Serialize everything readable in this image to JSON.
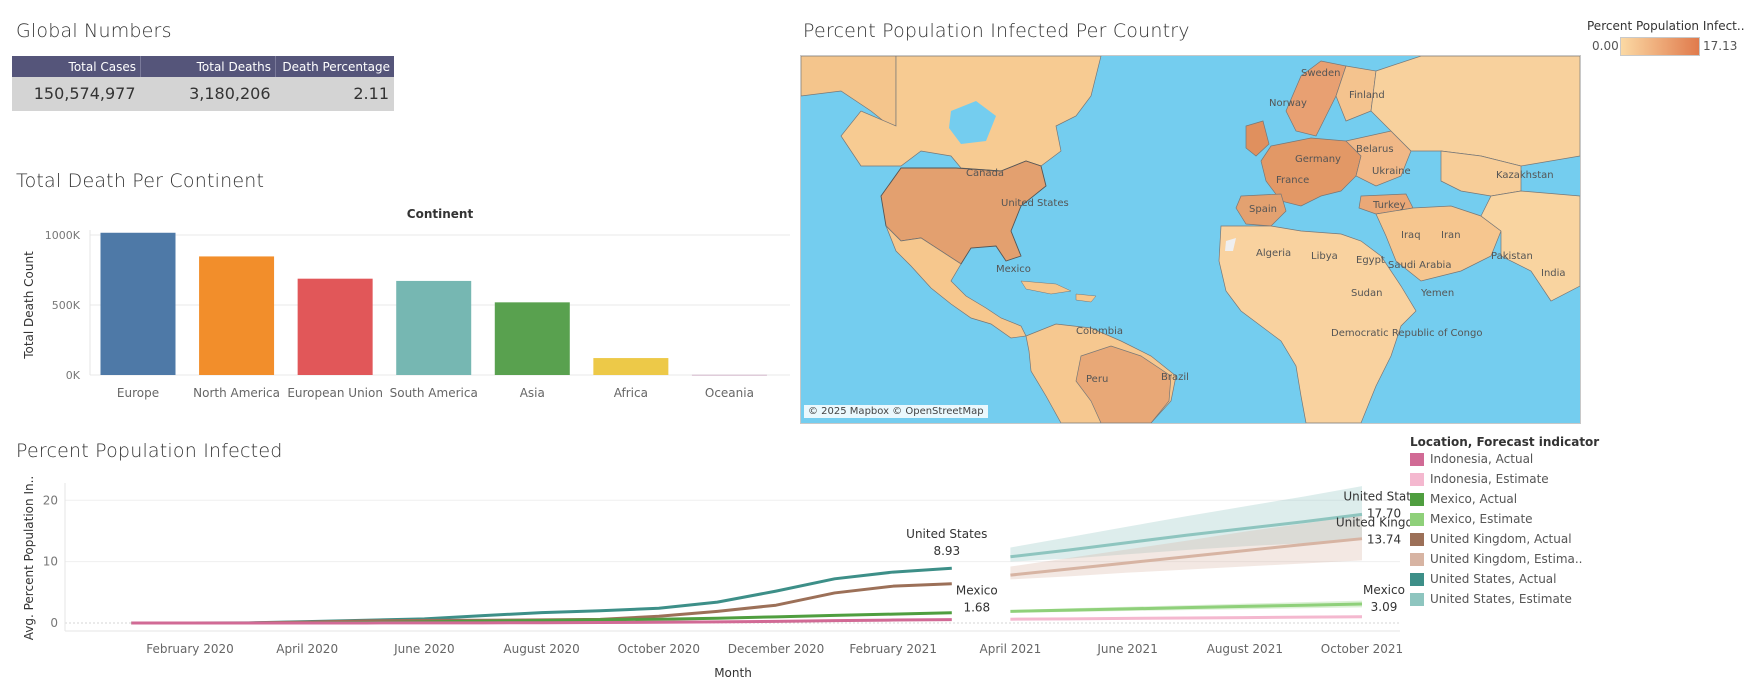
{
  "global_numbers": {
    "title": "Global Numbers",
    "headers": [
      "Total Cases",
      "Total Deaths",
      "Death Percentage"
    ],
    "values": [
      "150,574,977",
      "3,180,206",
      "2.11"
    ],
    "header_color": "#55557a"
  },
  "map": {
    "title": "Percent Population Infected Per Country",
    "legend_title": "Percent Population Infect..",
    "legend_min": "0.00",
    "legend_max": "17.13",
    "attribution": "© 2025 Mapbox © OpenStreetMap",
    "labels": [
      "Canada",
      "United States",
      "Mexico",
      "Colombia",
      "Peru",
      "Brazil",
      "Sweden",
      "Norway",
      "Finland",
      "Germany",
      "France",
      "Spain",
      "Ukraine",
      "Belarus",
      "Kazakhstan",
      "Turkey",
      "Iraq",
      "Iran",
      "Algeria",
      "Libya",
      "Egypt",
      "Saudi Arabia",
      "Pakistan",
      "India",
      "Sudan",
      "Yemen",
      "Democratic Republic of Congo"
    ],
    "water_color": "#74cdef",
    "low_color": "#fbd9a4",
    "high_color": "#e07a4c"
  },
  "chart_data": [
    {
      "type": "bar",
      "title": "Total Death Per Continent",
      "header": "Continent",
      "ylabel": "Total Death Count",
      "categories": [
        "Europe",
        "North America",
        "European Union",
        "South America",
        "Asia",
        "Africa",
        "Oceania"
      ],
      "values": [
        1016000,
        847000,
        688000,
        672000,
        519000,
        121000,
        1000
      ],
      "colors": [
        "#4e79a7",
        "#f28e2b",
        "#e15759",
        "#76b7b2",
        "#59a14f",
        "#edc948",
        "#b07aa1"
      ],
      "ylim": [
        0,
        1000000
      ],
      "yticks": [
        0,
        500000,
        1000000
      ],
      "ytick_labels": [
        "0K",
        "500K",
        "1000K"
      ],
      "grid": true
    },
    {
      "type": "line",
      "title": "Percent Population Infected",
      "xlabel": "Month",
      "ylabel": "Avg. Percent Population In..",
      "ylim": [
        0,
        22
      ],
      "yticks": [
        0,
        10,
        20
      ],
      "x_tick_labels": [
        "February 2020",
        "April 2020",
        "June 2020",
        "August 2020",
        "October 2020",
        "December 2020",
        "February 2021",
        "April 2021",
        "June 2021",
        "August 2021",
        "October 2021"
      ],
      "legend_title": "Location, Forecast indicator",
      "legend_placement": "right",
      "legend": [
        {
          "label": "Indonesia, Actual",
          "color": "#d16a95"
        },
        {
          "label": "Indonesia, Estimate",
          "color": "#f4b8cf"
        },
        {
          "label": "Mexico, Actual",
          "color": "#4f9e3f"
        },
        {
          "label": "Mexico, Estimate",
          "color": "#8fd07a"
        },
        {
          "label": "United Kingdom, Actual",
          "color": "#9c7058"
        },
        {
          "label": "United Kingdom, Estima..",
          "color": "#d7b4a3"
        },
        {
          "label": "United States, Actual",
          "color": "#3d8f88"
        },
        {
          "label": "United States, Estimate",
          "color": "#8ec5bf"
        }
      ],
      "actual_months": [
        "2020-01",
        "2020-02",
        "2020-03",
        "2020-04",
        "2020-05",
        "2020-06",
        "2020-07",
        "2020-08",
        "2020-09",
        "2020-10",
        "2020-11",
        "2020-12",
        "2021-01",
        "2021-02",
        "2021-03"
      ],
      "estimate_months": [
        "2021-04",
        "2021-05",
        "2021-06",
        "2021-07",
        "2021-08",
        "2021-09",
        "2021-10"
      ],
      "series": [
        {
          "name": "United States",
          "kind": "actual",
          "color": "#3d8f88",
          "values": [
            0.0,
            0.0,
            0.02,
            0.23,
            0.45,
            0.68,
            1.2,
            1.7,
            2.0,
            2.4,
            3.4,
            5.2,
            7.2,
            8.3,
            8.93
          ],
          "label": "United States",
          "value_label": "8.93"
        },
        {
          "name": "United Kingdom",
          "kind": "actual",
          "color": "#9c7058",
          "values": [
            0.0,
            0.0,
            0.01,
            0.15,
            0.35,
            0.42,
            0.45,
            0.5,
            0.6,
            1.1,
            1.9,
            2.9,
            4.9,
            6.0,
            6.4
          ]
        },
        {
          "name": "Mexico",
          "kind": "actual",
          "color": "#4f9e3f",
          "values": [
            0.0,
            0.0,
            0.0,
            0.02,
            0.08,
            0.18,
            0.3,
            0.4,
            0.52,
            0.62,
            0.78,
            1.0,
            1.25,
            1.45,
            1.68
          ],
          "label": "Mexico",
          "value_label": "1.68"
        },
        {
          "name": "Indonesia",
          "kind": "actual",
          "color": "#d16a95",
          "values": [
            0.0,
            0.0,
            0.0,
            0.0,
            0.01,
            0.02,
            0.03,
            0.05,
            0.08,
            0.13,
            0.18,
            0.26,
            0.38,
            0.48,
            0.55
          ]
        },
        {
          "name": "United States",
          "kind": "estimate",
          "color": "#8ec5bf",
          "values": [
            10.8,
            11.9,
            13.1,
            14.3,
            15.4,
            16.5,
            17.7
          ],
          "band_low": [
            10.0,
            10.5,
            11.2,
            11.9,
            12.5,
            13.0,
            13.7
          ],
          "band_high": [
            12.3,
            14.0,
            15.7,
            17.4,
            19.0,
            20.6,
            22.3
          ],
          "label": "United States",
          "value_label": "17.70"
        },
        {
          "name": "United Kingdom",
          "kind": "estimate",
          "color": "#d7b4a3",
          "values": [
            7.8,
            8.8,
            9.8,
            10.8,
            11.8,
            12.8,
            13.74
          ],
          "band_low": [
            7.1,
            7.6,
            8.2,
            8.7,
            9.2,
            9.7,
            10.2
          ],
          "band_high": [
            9.2,
            10.6,
            12.0,
            13.4,
            14.9,
            16.2,
            17.6
          ],
          "label": "United Kingdom",
          "value_label": "13.74"
        },
        {
          "name": "Mexico",
          "kind": "estimate",
          "color": "#8fd07a",
          "values": [
            1.9,
            2.1,
            2.3,
            2.5,
            2.7,
            2.9,
            3.09
          ],
          "band_low": [
            1.7,
            1.8,
            1.95,
            2.1,
            2.25,
            2.4,
            2.55
          ],
          "band_high": [
            2.1,
            2.4,
            2.65,
            2.9,
            3.15,
            3.4,
            3.65
          ],
          "label": "Mexico",
          "value_label": "3.09"
        },
        {
          "name": "Indonesia",
          "kind": "estimate",
          "color": "#f4b8cf",
          "values": [
            0.62,
            0.68,
            0.75,
            0.82,
            0.88,
            0.95,
            1.02
          ],
          "band_low": [
            0.57,
            0.6,
            0.64,
            0.68,
            0.72,
            0.76,
            0.8
          ],
          "band_high": [
            0.67,
            0.76,
            0.86,
            0.96,
            1.04,
            1.14,
            1.24
          ]
        }
      ]
    }
  ]
}
